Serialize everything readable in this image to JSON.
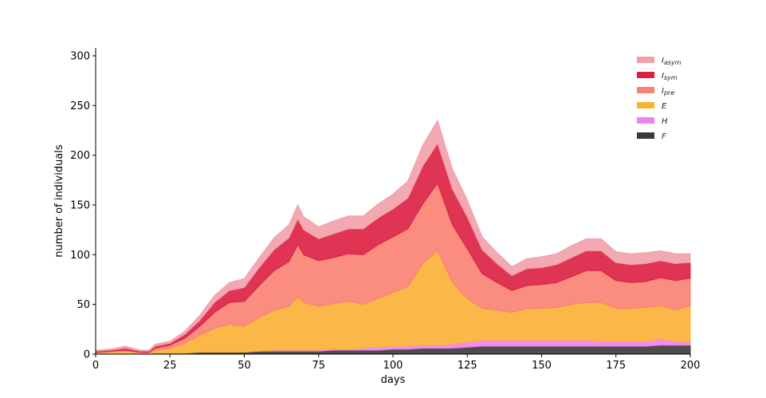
{
  "chart_data": {
    "type": "area",
    "stacked": true,
    "xlabel": "days",
    "ylabel": "number of individuals",
    "xlim": [
      0,
      200
    ],
    "ylim": [
      0,
      308
    ],
    "xticks": [
      0,
      25,
      50,
      75,
      100,
      125,
      150,
      175,
      200
    ],
    "yticks": [
      0,
      50,
      100,
      150,
      200,
      250,
      300
    ],
    "grid": false,
    "legend_position": "top-right",
    "x": [
      0,
      5,
      10,
      15,
      18,
      20,
      25,
      30,
      35,
      40,
      45,
      50,
      55,
      60,
      65,
      68,
      70,
      75,
      80,
      85,
      90,
      95,
      100,
      105,
      110,
      115,
      120,
      125,
      130,
      135,
      140,
      145,
      150,
      155,
      160,
      165,
      170,
      175,
      180,
      185,
      190,
      195,
      199,
      200
    ],
    "series": [
      {
        "name": "F",
        "color": "#3a3a3a",
        "values": [
          0,
          0,
          0,
          0,
          0,
          1,
          1,
          1,
          2,
          2,
          2,
          2,
          3,
          3,
          3,
          3,
          3,
          3,
          4,
          4,
          4,
          4,
          5,
          5,
          6,
          6,
          6,
          7,
          8,
          8,
          8,
          8,
          8,
          8,
          8,
          8,
          8,
          8,
          8,
          8,
          9,
          9,
          9,
          9
        ]
      },
      {
        "name": "H",
        "color": "#ee82ee",
        "values": [
          0,
          0,
          0,
          0,
          0,
          0,
          0,
          0,
          0,
          0,
          0,
          0,
          0,
          1,
          1,
          1,
          1,
          1,
          1,
          1,
          2,
          3,
          3,
          3,
          3,
          3,
          4,
          5,
          6,
          6,
          6,
          6,
          6,
          6,
          6,
          6,
          5,
          5,
          5,
          5,
          6,
          4,
          3,
          3
        ]
      },
      {
        "name": "E",
        "color": "#fbb034",
        "values": [
          1,
          2,
          3,
          1,
          1,
          3,
          5,
          10,
          17,
          24,
          28,
          26,
          34,
          40,
          44,
          54,
          48,
          44,
          46,
          48,
          44,
          49,
          54,
          60,
          82,
          95,
          62,
          44,
          32,
          30,
          28,
          32,
          32,
          33,
          36,
          38,
          39,
          33,
          33,
          34,
          34,
          31,
          36,
          36
        ]
      },
      {
        "name": "I_pre",
        "color": "#fa8072",
        "values": [
          1,
          1,
          1,
          1,
          1,
          2,
          3,
          5,
          9,
          16,
          22,
          25,
          32,
          40,
          45,
          52,
          48,
          46,
          46,
          48,
          50,
          54,
          56,
          58,
          60,
          68,
          58,
          50,
          35,
          28,
          22,
          23,
          24,
          25,
          28,
          32,
          32,
          28,
          26,
          26,
          28,
          30,
          28,
          28
        ]
      },
      {
        "name": "I_sym",
        "color": "#dc1e41",
        "values": [
          1,
          1,
          2,
          1,
          1,
          2,
          2,
          4,
          6,
          10,
          12,
          14,
          18,
          21,
          24,
          26,
          25,
          22,
          24,
          25,
          26,
          27,
          28,
          31,
          38,
          40,
          36,
          32,
          24,
          19,
          15,
          17,
          17,
          18,
          19,
          20,
          20,
          18,
          18,
          18,
          17,
          17,
          16,
          16
        ]
      },
      {
        "name": "I_asym",
        "color": "#f2a0a8",
        "values": [
          1,
          1,
          2,
          1,
          1,
          2,
          2,
          3,
          5,
          7,
          8,
          9,
          10,
          12,
          13,
          14,
          13,
          12,
          13,
          13,
          13,
          14,
          15,
          17,
          21,
          23,
          20,
          17,
          13,
          11,
          9,
          10,
          11,
          11,
          12,
          12,
          12,
          11,
          11,
          11,
          10,
          10,
          9,
          9
        ]
      }
    ],
    "legend": [
      {
        "label": "I",
        "sub": "asym",
        "color": "#f2a0a8"
      },
      {
        "label": "I",
        "sub": "sym",
        "color": "#dc1e41"
      },
      {
        "label": "I",
        "sub": "pre",
        "color": "#fa8072"
      },
      {
        "label": "E",
        "sub": "",
        "color": "#fbb034"
      },
      {
        "label": "H",
        "sub": "",
        "color": "#ee82ee"
      },
      {
        "label": "F",
        "sub": "",
        "color": "#3a3a3a"
      }
    ]
  }
}
